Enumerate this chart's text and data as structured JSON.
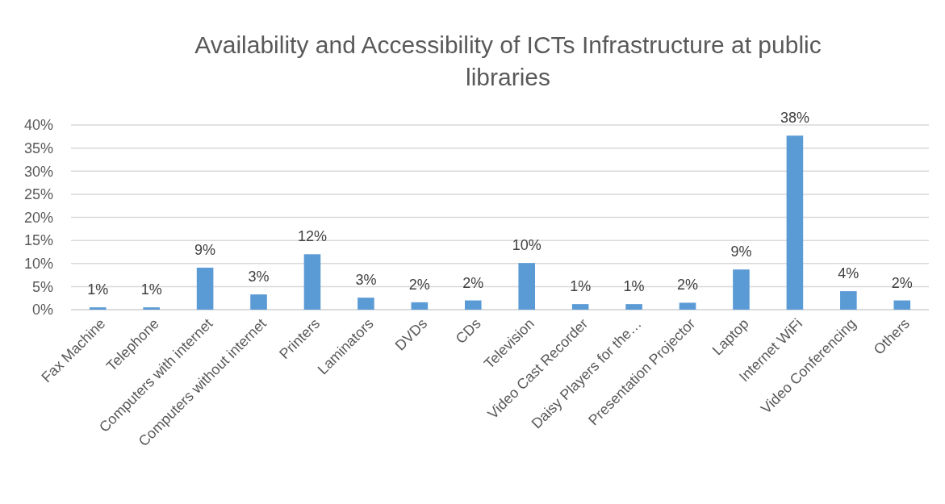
{
  "chart_data": {
    "type": "bar",
    "title": "Availability and Accessibility of ICTs Infrastructure at public libraries",
    "categories": [
      "Fax Machine",
      "Telephone",
      "Computers with internet",
      "Computers without internet",
      "Printers",
      "Laminators",
      "DVDs",
      "CDs",
      "Television",
      "Video Cast Recorder",
      "Daisy Players for the…",
      "Presentation Projector",
      "Laptop",
      "Internet WiFi",
      "Video Conferencing",
      "Others"
    ],
    "values": [
      0.5,
      0.5,
      9.1,
      3.3,
      12,
      2.6,
      1.6,
      2.0,
      10.1,
      1.2,
      1.2,
      1.5,
      8.7,
      37.7,
      4,
      2.0
    ],
    "value_labels": [
      "1%",
      "1%",
      "9%",
      "3%",
      "12%",
      "3%",
      "2%",
      "2%",
      "10%",
      "1%",
      "1%",
      "2%",
      "9%",
      "38%",
      "4%",
      "2%"
    ],
    "color": "#5b9bd5",
    "ylim": [
      0,
      40
    ],
    "yticks": [
      {
        "value": 0,
        "label": "0%"
      },
      {
        "value": 5,
        "label": "5%"
      },
      {
        "value": 10,
        "label": "10%"
      },
      {
        "value": 15,
        "label": "15%"
      },
      {
        "value": 20,
        "label": "20%"
      },
      {
        "value": 25,
        "label": "25%"
      },
      {
        "value": 30,
        "label": "30%"
      },
      {
        "value": 35,
        "label": "35%"
      },
      {
        "value": 40,
        "label": "40%"
      }
    ],
    "grid": "y"
  }
}
